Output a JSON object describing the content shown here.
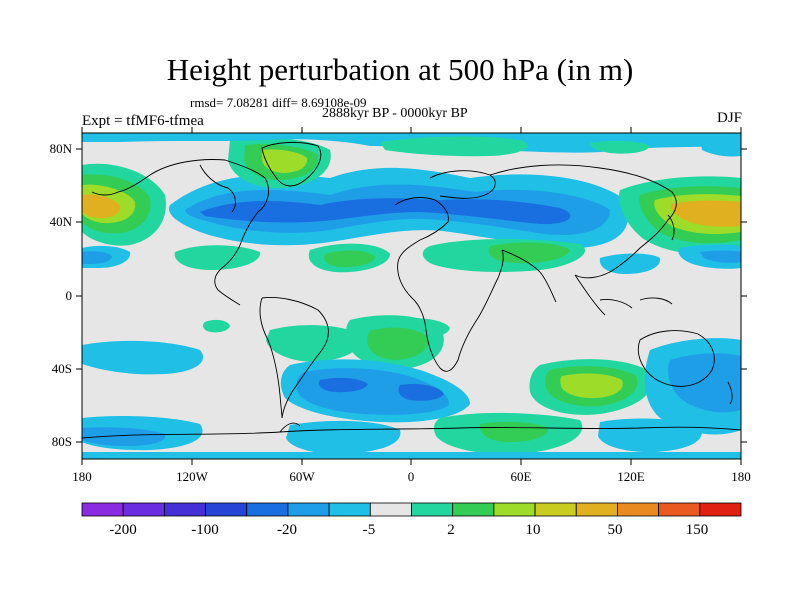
{
  "title": "Height perturbation at 500 hPa (in m)",
  "stats_line": "rmsd= 7.08281 diff= 8.69108e-09",
  "period_line": "2888kyr BP - 0000kyr BP",
  "experiment_line": "Expt = tfMF6-tfmea",
  "season": "DJF",
  "x_ticks": [
    "180",
    "120W",
    "60W",
    "0",
    "60E",
    "120E",
    "180"
  ],
  "y_ticks": [
    "80N",
    "40N",
    "0",
    "40S",
    "80S"
  ],
  "colorbar": {
    "labels": [
      "-200",
      "-100",
      "-20",
      "-5",
      "2",
      "10",
      "50",
      "150"
    ],
    "colors": [
      "#8a2be2",
      "#6a2de0",
      "#4530d8",
      "#2645d6",
      "#1a6fe0",
      "#1f9ee8",
      "#1fbfe6",
      "#e6e6e6",
      "#22d6a0",
      "#33cc55",
      "#9edc2a",
      "#c8cc20",
      "#e0b020",
      "#e88a20",
      "#e85a20",
      "#e02010"
    ]
  },
  "palette": {
    "background": "#e6e6e6",
    "coast": "#000000"
  }
}
